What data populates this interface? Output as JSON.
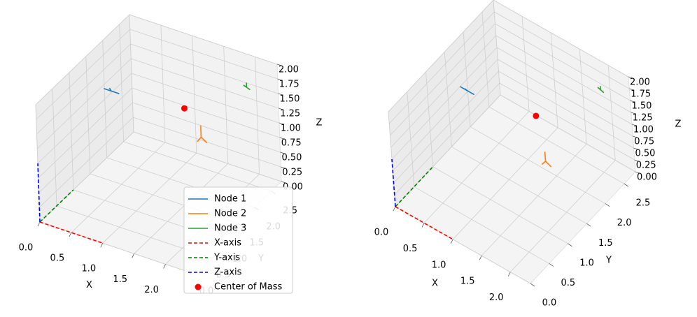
{
  "chart_data": [
    {
      "type": "line3d",
      "legend": "lower right",
      "grid": true,
      "xlabel": "X",
      "ylabel": "Y",
      "zlabel": "Z",
      "xlim": [
        0,
        2.35
      ],
      "ylim": [
        0,
        2.8
      ],
      "zlim": [
        0,
        2
      ],
      "xticks": [
        {
          "value": 0,
          "label": "0.0"
        },
        {
          "value": 0.5,
          "label": "0.5"
        },
        {
          "value": 1,
          "label": "1.0"
        },
        {
          "value": 1.5,
          "label": "1.5"
        },
        {
          "value": 2,
          "label": "2.0"
        }
      ],
      "yticks": [
        {
          "value": 0,
          "label": "0.0"
        },
        {
          "value": 0.5,
          "label": "0.5"
        },
        {
          "value": 1,
          "label": "1.0"
        },
        {
          "value": 1.5,
          "label": "1.5"
        },
        {
          "value": 2,
          "label": "2.0"
        },
        {
          "value": 2.5,
          "label": "2.5"
        }
      ],
      "zticks": [
        {
          "value": 0,
          "label": "0.00"
        },
        {
          "value": 0.25,
          "label": "0.25"
        },
        {
          "value": 0.5,
          "label": "0.50"
        },
        {
          "value": 0.75,
          "label": "0.75"
        },
        {
          "value": 1,
          "label": "1.00"
        },
        {
          "value": 1.25,
          "label": "1.25"
        },
        {
          "value": 1.5,
          "label": "1.50"
        },
        {
          "value": 1.75,
          "label": "1.75"
        },
        {
          "value": 2,
          "label": "2.00"
        }
      ],
      "series": [
        {
          "name": "Node 1",
          "color": "#1f77b4",
          "linestyle": "-",
          "x": [
            0.38,
            0.5,
            0.62,
            0.5,
            0.5
          ],
          "y": [
            1.3,
            1.3,
            1.3,
            1.3,
            1.25
          ],
          "z": [
            1.7,
            1.7,
            1.7,
            1.7,
            1.78
          ]
        },
        {
          "name": "Node 2",
          "color": "#ff7f0e",
          "linestyle": "-",
          "x": [
            2.2,
            2.2,
            2.15,
            2.2,
            2.28
          ],
          "y": [
            0.8,
            0.8,
            0.78,
            0.8,
            0.82
          ],
          "z": [
            2.0,
            1.8,
            1.72,
            1.8,
            1.72
          ]
        },
        {
          "name": "Node 3",
          "color": "#2ca02c",
          "linestyle": "-",
          "x": [
            1.85,
            1.9,
            1.95,
            1.9,
            1.9
          ],
          "y": [
            2.7,
            2.7,
            2.7,
            2.7,
            2.7
          ],
          "z": [
            1.52,
            1.5,
            1.48,
            1.5,
            1.58
          ]
        },
        {
          "name": "X-axis",
          "color": "#ff0000",
          "linestyle": "--",
          "x": [
            0,
            1
          ],
          "y": [
            0,
            0
          ],
          "z": [
            0,
            0
          ]
        },
        {
          "name": "Y-axis",
          "color": "#008000",
          "linestyle": "--",
          "x": [
            0,
            0
          ],
          "y": [
            0,
            1
          ],
          "z": [
            0,
            0
          ]
        },
        {
          "name": "Z-axis",
          "color": "#0000ff",
          "linestyle": "--",
          "x": [
            0,
            0
          ],
          "y": [
            0,
            0
          ],
          "z": [
            0,
            1
          ]
        },
        {
          "name": "Center of Mass",
          "color": "#ff0000",
          "marker": "o",
          "x": [
            1.5
          ],
          "y": [
            1.6
          ],
          "z": [
            1.6
          ]
        }
      ]
    },
    {
      "type": "line3d",
      "grid": true,
      "xlabel": "X",
      "ylabel": "Y",
      "zlabel": "Z",
      "xlim": [
        0,
        2.35
      ],
      "ylim": [
        0,
        2.8
      ],
      "zlim": [
        0,
        2
      ],
      "xticks": [
        {
          "value": 0,
          "label": "0.0"
        },
        {
          "value": 0.5,
          "label": "0.5"
        },
        {
          "value": 1,
          "label": "1.0"
        },
        {
          "value": 1.5,
          "label": "1.5"
        },
        {
          "value": 2,
          "label": "2.0"
        }
      ],
      "yticks": [
        {
          "value": 0,
          "label": "0.0"
        },
        {
          "value": 0.5,
          "label": "0.5"
        },
        {
          "value": 1,
          "label": "1.0"
        },
        {
          "value": 1.5,
          "label": "1.5"
        },
        {
          "value": 2,
          "label": "2.0"
        },
        {
          "value": 2.5,
          "label": "2.5"
        }
      ],
      "zticks": [
        {
          "value": 0,
          "label": "0.00"
        },
        {
          "value": 0.25,
          "label": "0.25"
        },
        {
          "value": 0.5,
          "label": "0.50"
        },
        {
          "value": 0.75,
          "label": "0.75"
        },
        {
          "value": 1,
          "label": "1.00"
        },
        {
          "value": 1.25,
          "label": "1.25"
        },
        {
          "value": 1.5,
          "label": "1.50"
        },
        {
          "value": 1.75,
          "label": "1.75"
        },
        {
          "value": 2,
          "label": "2.00"
        }
      ],
      "series": [
        {
          "name": "Node 1",
          "color": "#1f77b4",
          "linestyle": "-",
          "x": [
            0.38,
            0.5,
            0.62,
            0.5,
            0.5
          ],
          "y": [
            1.3,
            1.3,
            1.3,
            1.3,
            1.25
          ],
          "z": [
            1.7,
            1.7,
            1.7,
            1.7,
            1.78
          ]
        },
        {
          "name": "Node 2",
          "color": "#ff7f0e",
          "linestyle": "-",
          "x": [
            2.2,
            2.2,
            2.15,
            2.2,
            2.28
          ],
          "y": [
            0.8,
            0.8,
            0.78,
            0.8,
            0.82
          ],
          "z": [
            2.0,
            1.8,
            1.72,
            1.8,
            1.72
          ]
        },
        {
          "name": "Node 3",
          "color": "#2ca02c",
          "linestyle": "-",
          "x": [
            1.85,
            1.9,
            1.95,
            1.9,
            1.9
          ],
          "y": [
            2.7,
            2.7,
            2.7,
            2.7,
            2.7
          ],
          "z": [
            1.52,
            1.5,
            1.48,
            1.5,
            1.58
          ]
        },
        {
          "name": "X-axis",
          "color": "#ff0000",
          "linestyle": "--",
          "x": [
            0,
            1
          ],
          "y": [
            0,
            0
          ],
          "z": [
            0,
            0
          ]
        },
        {
          "name": "Y-axis",
          "color": "#008000",
          "linestyle": "--",
          "x": [
            0,
            0
          ],
          "y": [
            0,
            1
          ],
          "z": [
            0,
            0
          ]
        },
        {
          "name": "Z-axis",
          "color": "#0000ff",
          "linestyle": "--",
          "x": [
            0,
            0
          ],
          "y": [
            0,
            0
          ],
          "z": [
            0,
            1
          ]
        },
        {
          "name": "Center of Mass",
          "color": "#ff0000",
          "marker": "o",
          "x": [
            1.5
          ],
          "y": [
            1.6
          ],
          "z": [
            1.6
          ]
        }
      ]
    }
  ]
}
